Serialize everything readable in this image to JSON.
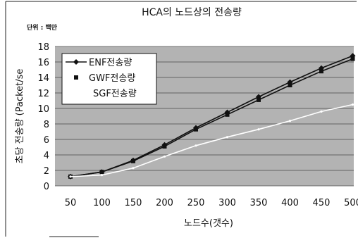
{
  "chart_data": {
    "type": "line",
    "title": "HCA의 노드상의 전송량",
    "unit_note": "단위 : 백만",
    "xlabel": "노드수(갯수)",
    "ylabel": "초당 전송량 (Packet/se",
    "categories": [
      "50",
      "100",
      "150",
      "200",
      "250",
      "300",
      "350",
      "400",
      "450",
      "500"
    ],
    "x": [
      50,
      100,
      150,
      200,
      250,
      300,
      350,
      400,
      450,
      500
    ],
    "ylim": [
      0,
      18
    ],
    "yticks": [
      0,
      2,
      4,
      6,
      8,
      10,
      12,
      14,
      16,
      18
    ],
    "grid": true,
    "legend_position": "top-left",
    "series": [
      {
        "name": "ENF전송량",
        "values": [
          1.2,
          1.8,
          3.3,
          5.3,
          7.5,
          9.5,
          11.5,
          13.4,
          15.2,
          16.8
        ],
        "color": "#111111",
        "marker": "diamond"
      },
      {
        "name": "GWF전송량",
        "values": [
          1.2,
          1.8,
          3.2,
          5.1,
          7.3,
          9.2,
          11.1,
          13.0,
          14.8,
          16.4
        ],
        "color": "#111111",
        "marker": "square"
      },
      {
        "name": "SGF전송량",
        "values": [
          1.2,
          1.4,
          2.3,
          3.8,
          5.2,
          6.3,
          7.3,
          8.4,
          9.6,
          10.5
        ],
        "color": "#ffffff",
        "marker": "none"
      }
    ]
  }
}
